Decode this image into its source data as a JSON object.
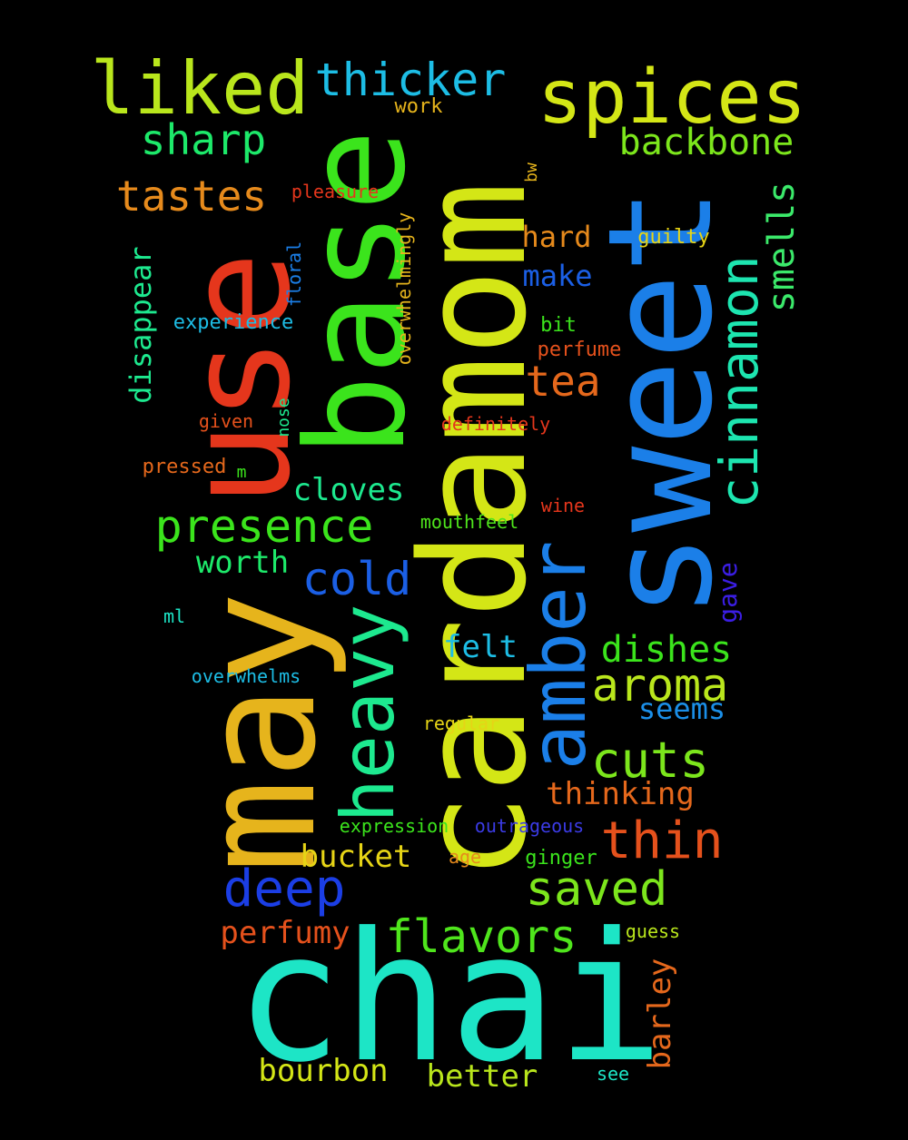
{
  "words": [
    {
      "id": "chai",
      "text": "chai",
      "color": "#1de5c6"
    },
    {
      "id": "cardamom",
      "text": "cardamom",
      "color": "#d4e616"
    },
    {
      "id": "sweet",
      "text": "sweet",
      "color": "#1b7fe8"
    },
    {
      "id": "may",
      "text": "may",
      "color": "#e6b41c"
    },
    {
      "id": "use",
      "text": "use",
      "color": "#e5361c"
    },
    {
      "id": "base",
      "text": "base",
      "color": "#3be41c"
    },
    {
      "id": "amber",
      "text": "amber",
      "color": "#1b7fe8"
    },
    {
      "id": "heavy",
      "text": "heavy",
      "color": "#1de98f"
    },
    {
      "id": "cinnamon",
      "text": "cinnamon",
      "color": "#1de5b0"
    },
    {
      "id": "spices",
      "text": "spices",
      "color": "#d4e616"
    },
    {
      "id": "liked",
      "text": "liked",
      "color": "#b9e61c"
    },
    {
      "id": "thicker",
      "text": "thicker",
      "color": "#1dbde5"
    },
    {
      "id": "presence",
      "text": "presence",
      "color": "#3be41c"
    },
    {
      "id": "cold",
      "text": "cold",
      "color": "#1b5fe5"
    },
    {
      "id": "aroma",
      "text": "aroma",
      "color": "#b9e61c"
    },
    {
      "id": "cuts",
      "text": "cuts",
      "color": "#7ce61c"
    },
    {
      "id": "thin",
      "text": "thin",
      "color": "#e5511c"
    },
    {
      "id": "deep",
      "text": "deep",
      "color": "#1b3ee5"
    },
    {
      "id": "saved",
      "text": "saved",
      "color": "#7ce61c"
    },
    {
      "id": "flavors",
      "text": "flavors",
      "color": "#4fe51c"
    },
    {
      "id": "sharp",
      "text": "sharp",
      "color": "#1de96a"
    },
    {
      "id": "backbone",
      "text": "backbone",
      "color": "#7ce61c"
    },
    {
      "id": "tastes",
      "text": "tastes",
      "color": "#e68a1c"
    },
    {
      "id": "smells",
      "text": "smells",
      "color": "#3be96a"
    },
    {
      "id": "tea",
      "text": "tea",
      "color": "#e5681c"
    },
    {
      "id": "disappear",
      "text": "disappear",
      "color": "#1de98f"
    },
    {
      "id": "dishes",
      "text": "dishes",
      "color": "#3be41c"
    },
    {
      "id": "cloves",
      "text": "cloves",
      "color": "#1de98f"
    },
    {
      "id": "worth",
      "text": "worth",
      "color": "#1de96a"
    },
    {
      "id": "felt",
      "text": "felt",
      "color": "#1dbde5"
    },
    {
      "id": "seems",
      "text": "seems",
      "color": "#1b8fe8"
    },
    {
      "id": "thinking",
      "text": "thinking",
      "color": "#e5681c"
    },
    {
      "id": "bucket",
      "text": "bucket",
      "color": "#e6d416"
    },
    {
      "id": "perfumy",
      "text": "perfumy",
      "color": "#e5511c"
    },
    {
      "id": "bourbon",
      "text": "bourbon",
      "color": "#d4e616"
    },
    {
      "id": "better",
      "text": "better",
      "color": "#b9e61c"
    },
    {
      "id": "barley",
      "text": "barley",
      "color": "#e5681c"
    },
    {
      "id": "hard",
      "text": "hard",
      "color": "#e68a1c"
    },
    {
      "id": "make",
      "text": "make",
      "color": "#1b5fe5"
    },
    {
      "id": "gave",
      "text": "gave",
      "color": "#3b1ee5"
    },
    {
      "id": "work",
      "text": "work",
      "color": "#e6b41c"
    },
    {
      "id": "pleasure",
      "text": "pleasure",
      "color": "#e5361c"
    },
    {
      "id": "bw",
      "text": "bw",
      "color": "#e6b41c"
    },
    {
      "id": "guilty",
      "text": "guilty",
      "color": "#e6d416"
    },
    {
      "id": "floral",
      "text": "floral",
      "color": "#1b7fe8"
    },
    {
      "id": "overwhelmingly",
      "text": "overwhelmingly",
      "color": "#e6b41c"
    },
    {
      "id": "experience",
      "text": "experience",
      "color": "#1dbde5"
    },
    {
      "id": "bit",
      "text": "bit",
      "color": "#3be41c"
    },
    {
      "id": "perfume",
      "text": "perfume",
      "color": "#e5511c"
    },
    {
      "id": "nose",
      "text": "nose",
      "color": "#1de98f"
    },
    {
      "id": "given",
      "text": "given",
      "color": "#e5511c"
    },
    {
      "id": "definitely",
      "text": "definitely",
      "color": "#e5361c"
    },
    {
      "id": "pressed",
      "text": "pressed",
      "color": "#e5681c"
    },
    {
      "id": "m",
      "text": "m",
      "color": "#3be41c"
    },
    {
      "id": "wine",
      "text": "wine",
      "color": "#e5361c"
    },
    {
      "id": "mouthfeel",
      "text": "mouthfeel",
      "color": "#4fe51c"
    },
    {
      "id": "ml",
      "text": "ml",
      "color": "#1de5c6"
    },
    {
      "id": "overwhelms",
      "text": "overwhelms",
      "color": "#1dbde5"
    },
    {
      "id": "regular",
      "text": "regular",
      "color": "#e6d416"
    },
    {
      "id": "expression",
      "text": "expression",
      "color": "#3be41c"
    },
    {
      "id": "outrageous",
      "text": "outrageous",
      "color": "#3b3be5"
    },
    {
      "id": "age",
      "text": "age",
      "color": "#e68a1c"
    },
    {
      "id": "ginger",
      "text": "ginger",
      "color": "#3be41c"
    },
    {
      "id": "guess",
      "text": "guess",
      "color": "#b9e61c"
    },
    {
      "id": "see",
      "text": "see",
      "color": "#1de5c6"
    }
  ]
}
